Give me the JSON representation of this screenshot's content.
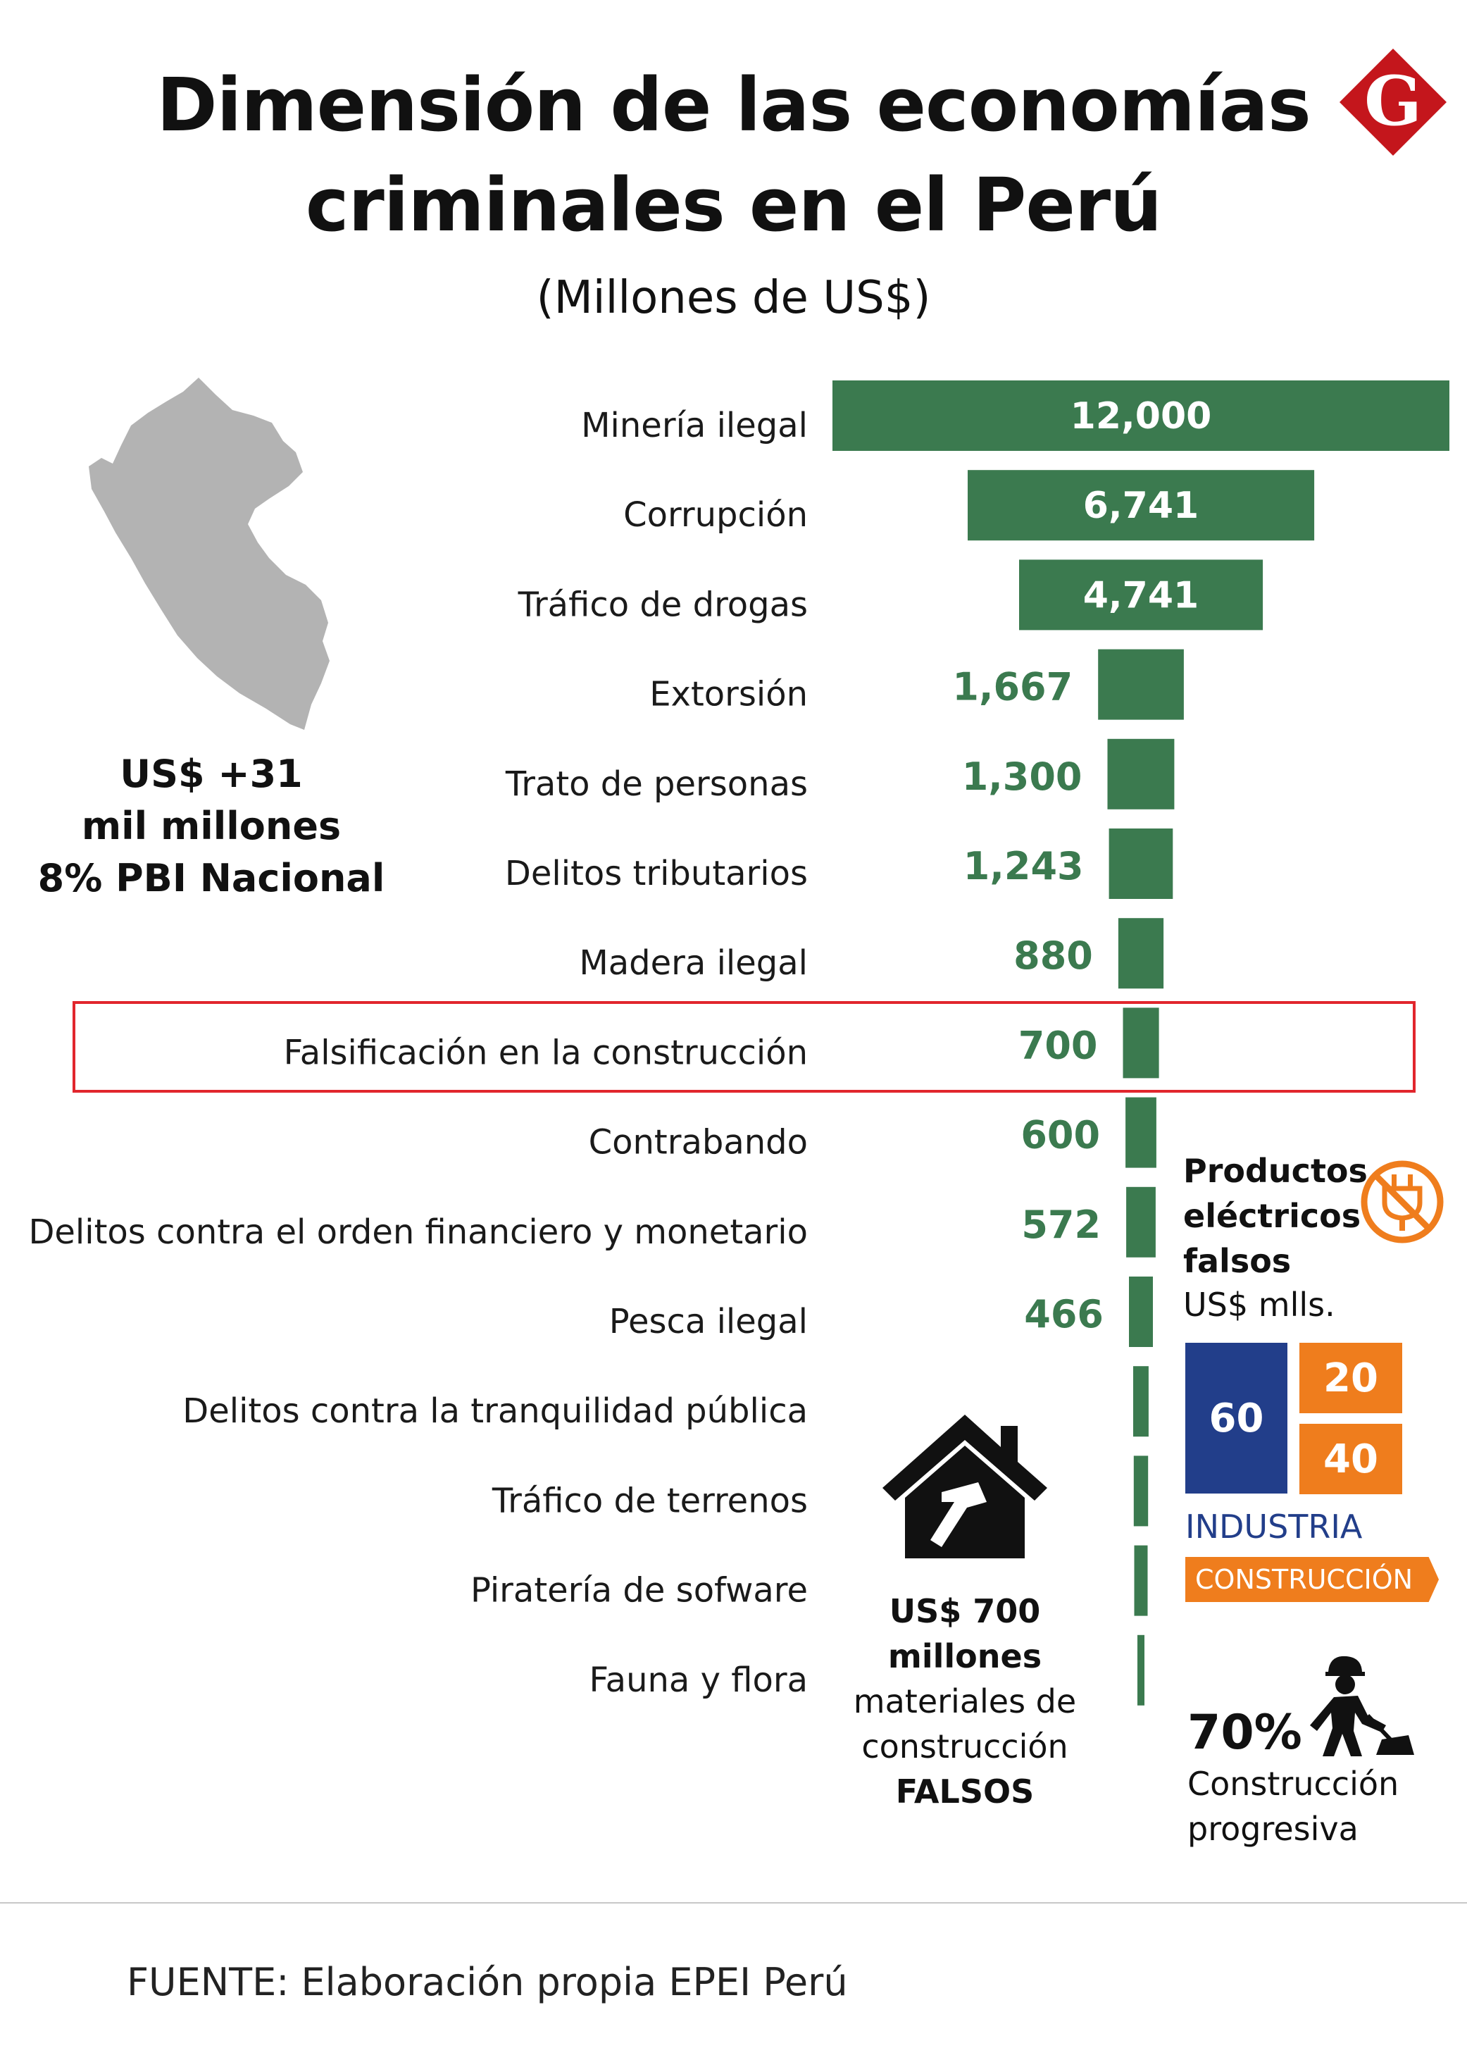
{
  "header": {
    "title_line1": "Dimensión de las economías",
    "title_line2": "criminales en el Perú",
    "subtitle": "(Millones de US$)",
    "logo_letter": "G",
    "logo_color": "#c4161c"
  },
  "summary": {
    "line1": "US$ +31",
    "line2": "mil millones",
    "line3": "8% PBI Nacional"
  },
  "chart_data": {
    "type": "bar",
    "orientation": "horizontal",
    "bar_color": "#3b7a4f",
    "categories": [
      "Minería ilegal",
      "Corrupción",
      "Tráfico de drogas",
      "Extorsión",
      "Trato de personas",
      "Delitos tributarios",
      "Madera ilegal",
      "Falsificación en la construcción",
      "Contrabando",
      "Delitos contra el orden financiero y monetario",
      "Pesca ilegal",
      "Delitos contra la tranquilidad pública",
      "Tráfico de terrenos",
      "Piratería de sofware",
      "Fauna y flora"
    ],
    "values": [
      12000,
      6741,
      4741,
      1667,
      1300,
      1243,
      880,
      700,
      600,
      572,
      466,
      300,
      280,
      260,
      100
    ],
    "value_labels": [
      "12,000",
      "6,741",
      "4,741",
      "1,667",
      "1,300",
      "1,243",
      "880",
      "700",
      "600",
      "572",
      "466",
      "",
      "",
      "",
      ""
    ],
    "highlighted_category": "Falsificación en la construcción",
    "highlight_color": "#e1262d"
  },
  "construction_note": {
    "line1": "US$ 700",
    "line2": "millones",
    "line3": "materiales de",
    "line4": "construcción",
    "line5": "FALSOS"
  },
  "electrical": {
    "title_line1": "Productos",
    "title_line2": "eléctricos",
    "title_line3": "falsos",
    "unit": "US$ mlls.",
    "industria_value": "60",
    "construccion_values": [
      "20",
      "40"
    ],
    "legend_industria": "INDUSTRIA",
    "legend_construccion": "CONSTRUCCIÓN",
    "industria_color": "#223e8a",
    "construccion_color": "#ef7d1d"
  },
  "progressive": {
    "percent": "70%",
    "line1": "Construcción",
    "line2": "progresiva"
  },
  "footer": {
    "source": "FUENTE: Elaboración propia EPEI Perú"
  }
}
